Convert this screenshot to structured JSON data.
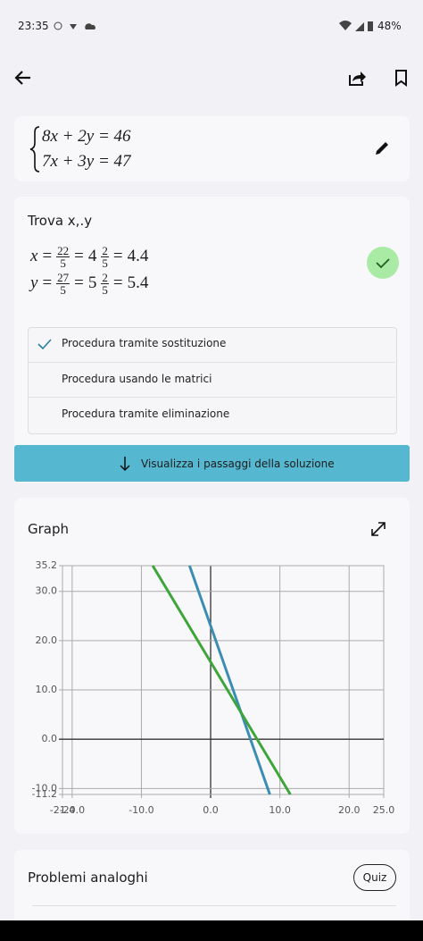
{
  "status_bar": {
    "time": "23:35",
    "battery": "48%"
  },
  "system": {
    "equations": [
      "8x + 2y = 46",
      "7x + 3y = 47"
    ]
  },
  "solution": {
    "title": "Trova x,.y",
    "relation": "=",
    "rows": [
      {
        "variable": "x",
        "fraction_num": "22",
        "fraction_den": "5",
        "mixed_whole": "4",
        "mixed_num": "2",
        "mixed_den": "5",
        "decimal": "4.4"
      },
      {
        "variable": "y",
        "fraction_num": "27",
        "fraction_den": "5",
        "mixed_whole": "5",
        "mixed_num": "2",
        "mixed_den": "5",
        "decimal": "5.4"
      }
    ]
  },
  "methods": {
    "items": [
      "Procedura tramite sostituzione",
      "Procedura usando le matrici",
      "Procedura tramite eliminazione"
    ],
    "selected": 0
  },
  "solution_button": "Visualizza i passaggi della soluzione",
  "chart_data": {
    "type": "line",
    "title": "Graph",
    "xlim": [
      -21.4,
      25.0
    ],
    "xticks": [
      -21.4,
      {
        "value": -20,
        "label": "-20.0"
      },
      {
        "value": -10,
        "label": "-10.0"
      },
      {
        "value": 0,
        "label": "0.0"
      },
      {
        "value": 10,
        "label": "10.0"
      },
      {
        "value": 20,
        "label": "20.0"
      },
      {
        "value": 25,
        "label": "25.0"
      }
    ],
    "ylim": [
      -11.2,
      35.2
    ],
    "yticks": [
      -11.2,
      {
        "value": -10,
        "label": "-10.0"
      },
      {
        "value": 0,
        "label": "0.0"
      },
      {
        "value": 10,
        "label": "10.0"
      },
      {
        "value": 20,
        "label": "20.0"
      },
      {
        "value": 30,
        "label": "30.0"
      },
      35.2
    ],
    "grid": true,
    "series": [
      {
        "color": "#3b8db4",
        "x": [
          -3.05,
          8.55
        ],
        "values": [
          35.2,
          -11.2
        ]
      },
      {
        "color": "#3ea53a",
        "x": [
          -8.37,
          11.51
        ],
        "values": [
          35.2,
          -11.2
        ]
      }
    ]
  },
  "similar": {
    "title": "Problemi analoghi",
    "quiz": "Quiz"
  }
}
